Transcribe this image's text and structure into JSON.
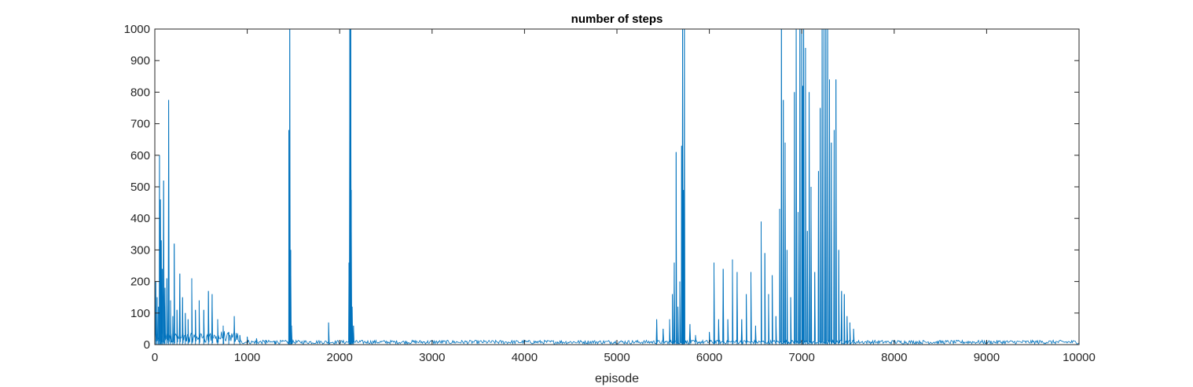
{
  "chart_data": {
    "type": "line",
    "title": "number of steps",
    "xlabel": "episode",
    "ylabel": "",
    "xlim": [
      0,
      10000
    ],
    "ylim": [
      0,
      1000
    ],
    "xticks": [
      "0",
      "1000",
      "2000",
      "3000",
      "4000",
      "5000",
      "6000",
      "7000",
      "8000",
      "9000",
      "10000"
    ],
    "yticks": [
      "0",
      "100",
      "200",
      "300",
      "400",
      "500",
      "600",
      "700",
      "800",
      "900",
      "1000"
    ],
    "grid": false,
    "line_color": "#0072BD",
    "baseline_noise": [
      2,
      14
    ],
    "spikes": [
      {
        "x": 10,
        "y": 200
      },
      {
        "x": 25,
        "y": 150
      },
      {
        "x": 40,
        "y": 120
      },
      {
        "x": 50,
        "y": 600
      },
      {
        "x": 60,
        "y": 460
      },
      {
        "x": 70,
        "y": 330
      },
      {
        "x": 80,
        "y": 240
      },
      {
        "x": 95,
        "y": 520
      },
      {
        "x": 110,
        "y": 180
      },
      {
        "x": 130,
        "y": 210
      },
      {
        "x": 150,
        "y": 775
      },
      {
        "x": 170,
        "y": 140
      },
      {
        "x": 195,
        "y": 90
      },
      {
        "x": 210,
        "y": 320
      },
      {
        "x": 240,
        "y": 110
      },
      {
        "x": 270,
        "y": 225
      },
      {
        "x": 300,
        "y": 150
      },
      {
        "x": 330,
        "y": 100
      },
      {
        "x": 360,
        "y": 80
      },
      {
        "x": 400,
        "y": 210
      },
      {
        "x": 440,
        "y": 110
      },
      {
        "x": 480,
        "y": 140
      },
      {
        "x": 530,
        "y": 110
      },
      {
        "x": 580,
        "y": 170
      },
      {
        "x": 620,
        "y": 160
      },
      {
        "x": 680,
        "y": 80
      },
      {
        "x": 740,
        "y": 60
      },
      {
        "x": 800,
        "y": 40
      },
      {
        "x": 860,
        "y": 90
      },
      {
        "x": 920,
        "y": 30
      },
      {
        "x": 1000,
        "y": 25
      },
      {
        "x": 1100,
        "y": 20
      },
      {
        "x": 1200,
        "y": 15
      },
      {
        "x": 1300,
        "y": 12
      },
      {
        "x": 1450,
        "y": 680
      },
      {
        "x": 1460,
        "y": 1000
      },
      {
        "x": 1470,
        "y": 300
      },
      {
        "x": 1480,
        "y": 60
      },
      {
        "x": 1880,
        "y": 70
      },
      {
        "x": 2100,
        "y": 260
      },
      {
        "x": 2110,
        "y": 1000
      },
      {
        "x": 2115,
        "y": 1000
      },
      {
        "x": 2120,
        "y": 1000
      },
      {
        "x": 2125,
        "y": 490
      },
      {
        "x": 2135,
        "y": 120
      },
      {
        "x": 2150,
        "y": 60
      },
      {
        "x": 5430,
        "y": 80
      },
      {
        "x": 5500,
        "y": 50
      },
      {
        "x": 5570,
        "y": 80
      },
      {
        "x": 5600,
        "y": 160
      },
      {
        "x": 5620,
        "y": 260
      },
      {
        "x": 5640,
        "y": 610
      },
      {
        "x": 5660,
        "y": 120
      },
      {
        "x": 5680,
        "y": 200
      },
      {
        "x": 5700,
        "y": 630
      },
      {
        "x": 5710,
        "y": 1000
      },
      {
        "x": 5720,
        "y": 490
      },
      {
        "x": 5730,
        "y": 1000
      },
      {
        "x": 5790,
        "y": 65
      },
      {
        "x": 5850,
        "y": 30
      },
      {
        "x": 6000,
        "y": 40
      },
      {
        "x": 6050,
        "y": 260
      },
      {
        "x": 6100,
        "y": 80
      },
      {
        "x": 6150,
        "y": 240
      },
      {
        "x": 6200,
        "y": 80
      },
      {
        "x": 6250,
        "y": 270
      },
      {
        "x": 6300,
        "y": 230
      },
      {
        "x": 6350,
        "y": 80
      },
      {
        "x": 6400,
        "y": 160
      },
      {
        "x": 6450,
        "y": 230
      },
      {
        "x": 6500,
        "y": 60
      },
      {
        "x": 6560,
        "y": 390
      },
      {
        "x": 6600,
        "y": 290
      },
      {
        "x": 6640,
        "y": 160
      },
      {
        "x": 6680,
        "y": 220
      },
      {
        "x": 6720,
        "y": 90
      },
      {
        "x": 6760,
        "y": 430
      },
      {
        "x": 6780,
        "y": 1000
      },
      {
        "x": 6800,
        "y": 775
      },
      {
        "x": 6820,
        "y": 640
      },
      {
        "x": 6840,
        "y": 300
      },
      {
        "x": 6880,
        "y": 150
      },
      {
        "x": 6920,
        "y": 800
      },
      {
        "x": 6940,
        "y": 1000
      },
      {
        "x": 6960,
        "y": 420
      },
      {
        "x": 6980,
        "y": 1000
      },
      {
        "x": 7000,
        "y": 1000
      },
      {
        "x": 7010,
        "y": 820
      },
      {
        "x": 7020,
        "y": 1000
      },
      {
        "x": 7040,
        "y": 940
      },
      {
        "x": 7060,
        "y": 360
      },
      {
        "x": 7080,
        "y": 800
      },
      {
        "x": 7100,
        "y": 500
      },
      {
        "x": 7140,
        "y": 230
      },
      {
        "x": 7180,
        "y": 550
      },
      {
        "x": 7200,
        "y": 750
      },
      {
        "x": 7220,
        "y": 1000
      },
      {
        "x": 7240,
        "y": 1000
      },
      {
        "x": 7260,
        "y": 1000
      },
      {
        "x": 7280,
        "y": 1000
      },
      {
        "x": 7300,
        "y": 840
      },
      {
        "x": 7320,
        "y": 640
      },
      {
        "x": 7350,
        "y": 680
      },
      {
        "x": 7370,
        "y": 840
      },
      {
        "x": 7400,
        "y": 300
      },
      {
        "x": 7430,
        "y": 170
      },
      {
        "x": 7460,
        "y": 160
      },
      {
        "x": 7490,
        "y": 90
      },
      {
        "x": 7520,
        "y": 70
      },
      {
        "x": 7560,
        "y": 50
      }
    ]
  }
}
